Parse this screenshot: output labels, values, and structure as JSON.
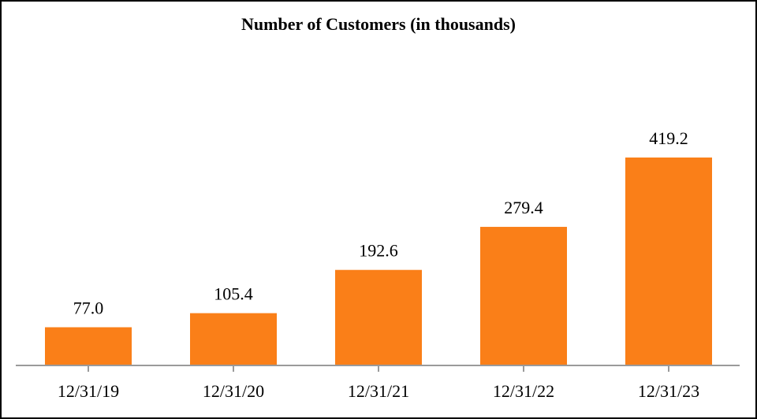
{
  "chart_data": {
    "type": "bar",
    "title": "Number of Customers (in thousands)",
    "categories": [
      "12/31/19",
      "12/31/20",
      "12/31/21",
      "12/31/22",
      "12/31/23"
    ],
    "values": [
      77.0,
      105.4,
      192.6,
      279.4,
      419.2
    ],
    "value_labels": [
      "77.0",
      "105.4",
      "192.6",
      "279.4",
      "419.2"
    ],
    "xlabel": "",
    "ylabel": "",
    "ylim": [
      0,
      450
    ],
    "grid": false,
    "bar_color": "#FA7F18",
    "axis_color": "#9A9A9A"
  }
}
